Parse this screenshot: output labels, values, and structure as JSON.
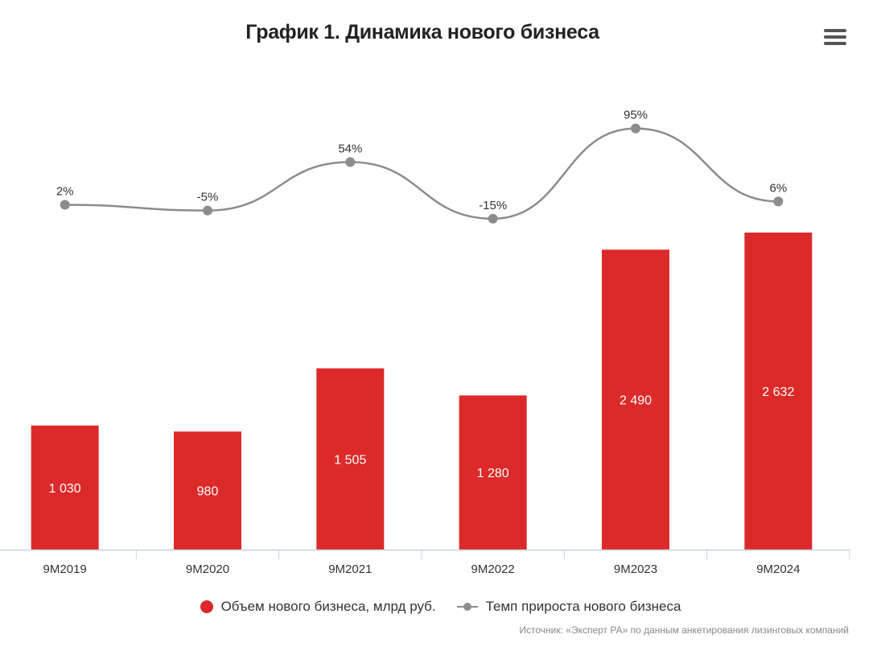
{
  "title": "График 1. Динамика нового бизнеса",
  "menu_icon": "hamburger-menu-icon",
  "colors": {
    "bar": "#dc2a2a",
    "line": "#8c8c8c",
    "axis": "#c8d2e6"
  },
  "chart_data": {
    "type": "bar",
    "title": "График 1. Динамика нового бизнеса",
    "categories": [
      "9M2019",
      "9M2020",
      "9M2021",
      "9M2022",
      "9M2023",
      "9M2024"
    ],
    "series": [
      {
        "name": "Объем нового бизнеса, млрд руб.",
        "type": "bar",
        "values": [
          1030,
          980,
          1505,
          1280,
          2490,
          2632
        ],
        "labels": [
          "1 030",
          "980",
          "1 505",
          "1 280",
          "2 490",
          "2 632"
        ]
      },
      {
        "name": "Темп прироста нового бизнеса",
        "type": "line",
        "values": [
          2,
          -5,
          54,
          -15,
          95,
          6
        ],
        "labels": [
          "2%",
          "-5%",
          "54%",
          "-15%",
          "95%",
          "6%"
        ]
      }
    ],
    "ylim": [
      0,
      2632
    ],
    "xlabel": "",
    "ylabel": "",
    "legend": "bottom"
  },
  "legend": {
    "bar_label": "Объем нового бизнеса, млрд руб.",
    "line_label": "Темп прироста нового бизнеса"
  },
  "source": "Источник: «Эксперт РА» по данным анкетирования лизинговых компаний"
}
